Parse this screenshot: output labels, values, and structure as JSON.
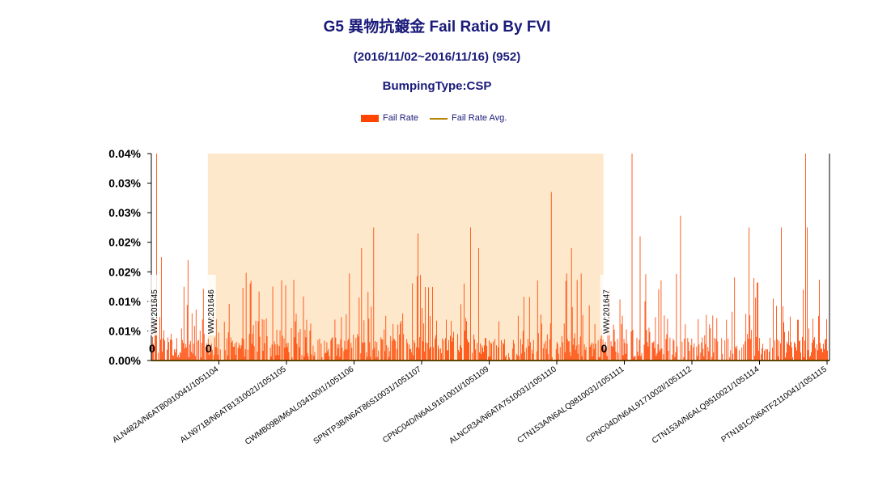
{
  "chart_data": {
    "type": "bar",
    "title": "G5 異物抗鍍金 Fail Ratio By FVI",
    "subtitle": "(2016/11/02~2016/11/16) (952)",
    "subtitle2": "BumpingType:CSP",
    "legend": [
      "Fail Rate",
      "Fail Rate Avg."
    ],
    "legend_position": "top-center",
    "y_tick_labels": [
      "0.00%",
      "0.01%",
      "0.01%",
      "0.02%",
      "0.02%",
      "0.03%",
      "0.03%",
      "0.04%"
    ],
    "ylim": [
      0,
      0.035
    ],
    "x_tick_labels": [
      "ALN482A/N6ATB0910041/1051104",
      "ALN971B/N6ATB1310021/1051105",
      "CWMB09B/M6AL034100I1/1051106",
      "SPNTP3B/N6AT86S10031/1051107",
      "CPNC04D/N6AL9161001I/1051109",
      "ALNCR3A/N6ATA7510031/1051110",
      "CTN153A/N6ALQ9810031/1051111",
      "CPNC04D/N6AL9171002I/1051112",
      "CTN153A/N6ALQ9510021/1051114",
      "PTN181C/N6ATF2110041/1051115"
    ],
    "week_markers": [
      {
        "label": "WW:201645",
        "value_label": "0",
        "bar_index": 0
      },
      {
        "label": "WW:201646",
        "value_label": "0",
        "bar_index": 70
      },
      {
        "label": "WW:201647",
        "value_label": "0",
        "bar_index": 560
      }
    ],
    "highlight_week": {
      "from_bar": 70,
      "to_bar": 560
    },
    "bar_count": 840,
    "avg_value": 0.0,
    "peaks": [
      {
        "bar": 6,
        "value": 0.035
      },
      {
        "bar": 12,
        "value": 0.0175
      },
      {
        "bar": 45,
        "value": 0.017
      },
      {
        "bar": 40,
        "value": 0.0125
      },
      {
        "bar": 275,
        "value": 0.0225
      },
      {
        "bar": 330,
        "value": 0.0215
      },
      {
        "bar": 395,
        "value": 0.0225
      },
      {
        "bar": 405,
        "value": 0.019
      },
      {
        "bar": 495,
        "value": 0.0285
      },
      {
        "bar": 520,
        "value": 0.019
      },
      {
        "bar": 595,
        "value": 0.035
      },
      {
        "bar": 605,
        "value": 0.021
      },
      {
        "bar": 655,
        "value": 0.0245
      },
      {
        "bar": 780,
        "value": 0.0225
      },
      {
        "bar": 810,
        "value": 0.035
      },
      {
        "bar": 812,
        "value": 0.0225
      },
      {
        "bar": 740,
        "value": 0.0225
      },
      {
        "bar": 260,
        "value": 0.019
      },
      {
        "bar": 150,
        "value": 0.0125
      }
    ],
    "colors": {
      "bar": "#ff4500",
      "avg": "#b8860b",
      "highlight": "#fde8cc",
      "title": "#1a1a7a"
    }
  }
}
